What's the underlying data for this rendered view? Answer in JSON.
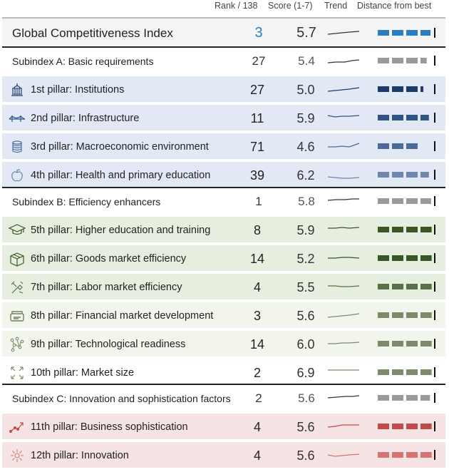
{
  "header": {
    "rank_label": "Rank / 138",
    "score_label": "Score (1-7)",
    "trend_label": "Trend",
    "distance_label": "Distance from best"
  },
  "colors": {
    "accent_blue": "#2b7ec1",
    "institutions_blue": "#1d3a6b",
    "infrastructure_blue": "#2f5385",
    "macro_blue": "#4b6a9a",
    "health_blue": "#6f86ad",
    "green_dark": "#3a5526",
    "green_mid": "#5a6f46",
    "green_light": "#7e8b6a",
    "red_dark": "#c04a4a",
    "red_light": "#d47474",
    "grey": "#9a9a9a"
  },
  "gci": {
    "label": "Global Competitiveness Index",
    "rank": "3",
    "score": "5.7",
    "distance": 0.95
  },
  "subindex_a": {
    "label": "Subindex A: Basic requirements",
    "rank": "27",
    "score": "5.4",
    "distance": 0.88
  },
  "subindex_b": {
    "label": "Subindex B: Efficiency enhancers",
    "rank": "1",
    "score": "5.8",
    "distance": 0.96
  },
  "subindex_c": {
    "label": "Subindex C: Innovation and sophistication factors",
    "rank": "2",
    "score": "5.6",
    "distance": 0.94
  },
  "pillars": [
    {
      "label": "1st pillar: Institutions",
      "rank": "27",
      "score": "5.0",
      "icon": "institution-icon",
      "distance": 0.82
    },
    {
      "label": "2nd pillar: Infrastructure",
      "rank": "11",
      "score": "5.9",
      "icon": "bridge-icon",
      "distance": 0.92
    },
    {
      "label": "3rd pillar: Macroeconomic environment",
      "rank": "71",
      "score": "4.6",
      "icon": "coins-icon",
      "distance": 0.72
    },
    {
      "label": "4th pillar: Health and primary education",
      "rank": "39",
      "score": "6.2",
      "icon": "apple-icon",
      "distance": 0.92
    },
    {
      "label": "5th pillar: Higher education and training",
      "rank": "8",
      "score": "5.9",
      "icon": "graduation-cap-icon",
      "distance": 0.97
    },
    {
      "label": "6th pillar: Goods market efficiency",
      "rank": "14",
      "score": "5.2",
      "icon": "box-icon",
      "distance": 0.97
    },
    {
      "label": "7th pillar: Labor market efficiency",
      "rank": "4",
      "score": "5.5",
      "icon": "tools-icon",
      "distance": 0.97
    },
    {
      "label": "8th pillar: Financial market development",
      "rank": "3",
      "score": "5.6",
      "icon": "money-icon",
      "distance": 0.97
    },
    {
      "label": "9th pillar: Technological readiness",
      "rank": "14",
      "score": "6.0",
      "icon": "network-icon",
      "distance": 0.97
    },
    {
      "label": "10th pillar: Market size",
      "rank": "2",
      "score": "6.9",
      "icon": "expand-arrows-icon",
      "distance": 0.97
    },
    {
      "label": "11th pillar: Business sophistication",
      "rank": "4",
      "score": "5.6",
      "icon": "growth-chart-icon",
      "distance": 0.97
    },
    {
      "label": "12th pillar: Innovation",
      "rank": "4",
      "score": "5.6",
      "icon": "lightbulb-burst-icon",
      "distance": 0.97
    }
  ]
}
